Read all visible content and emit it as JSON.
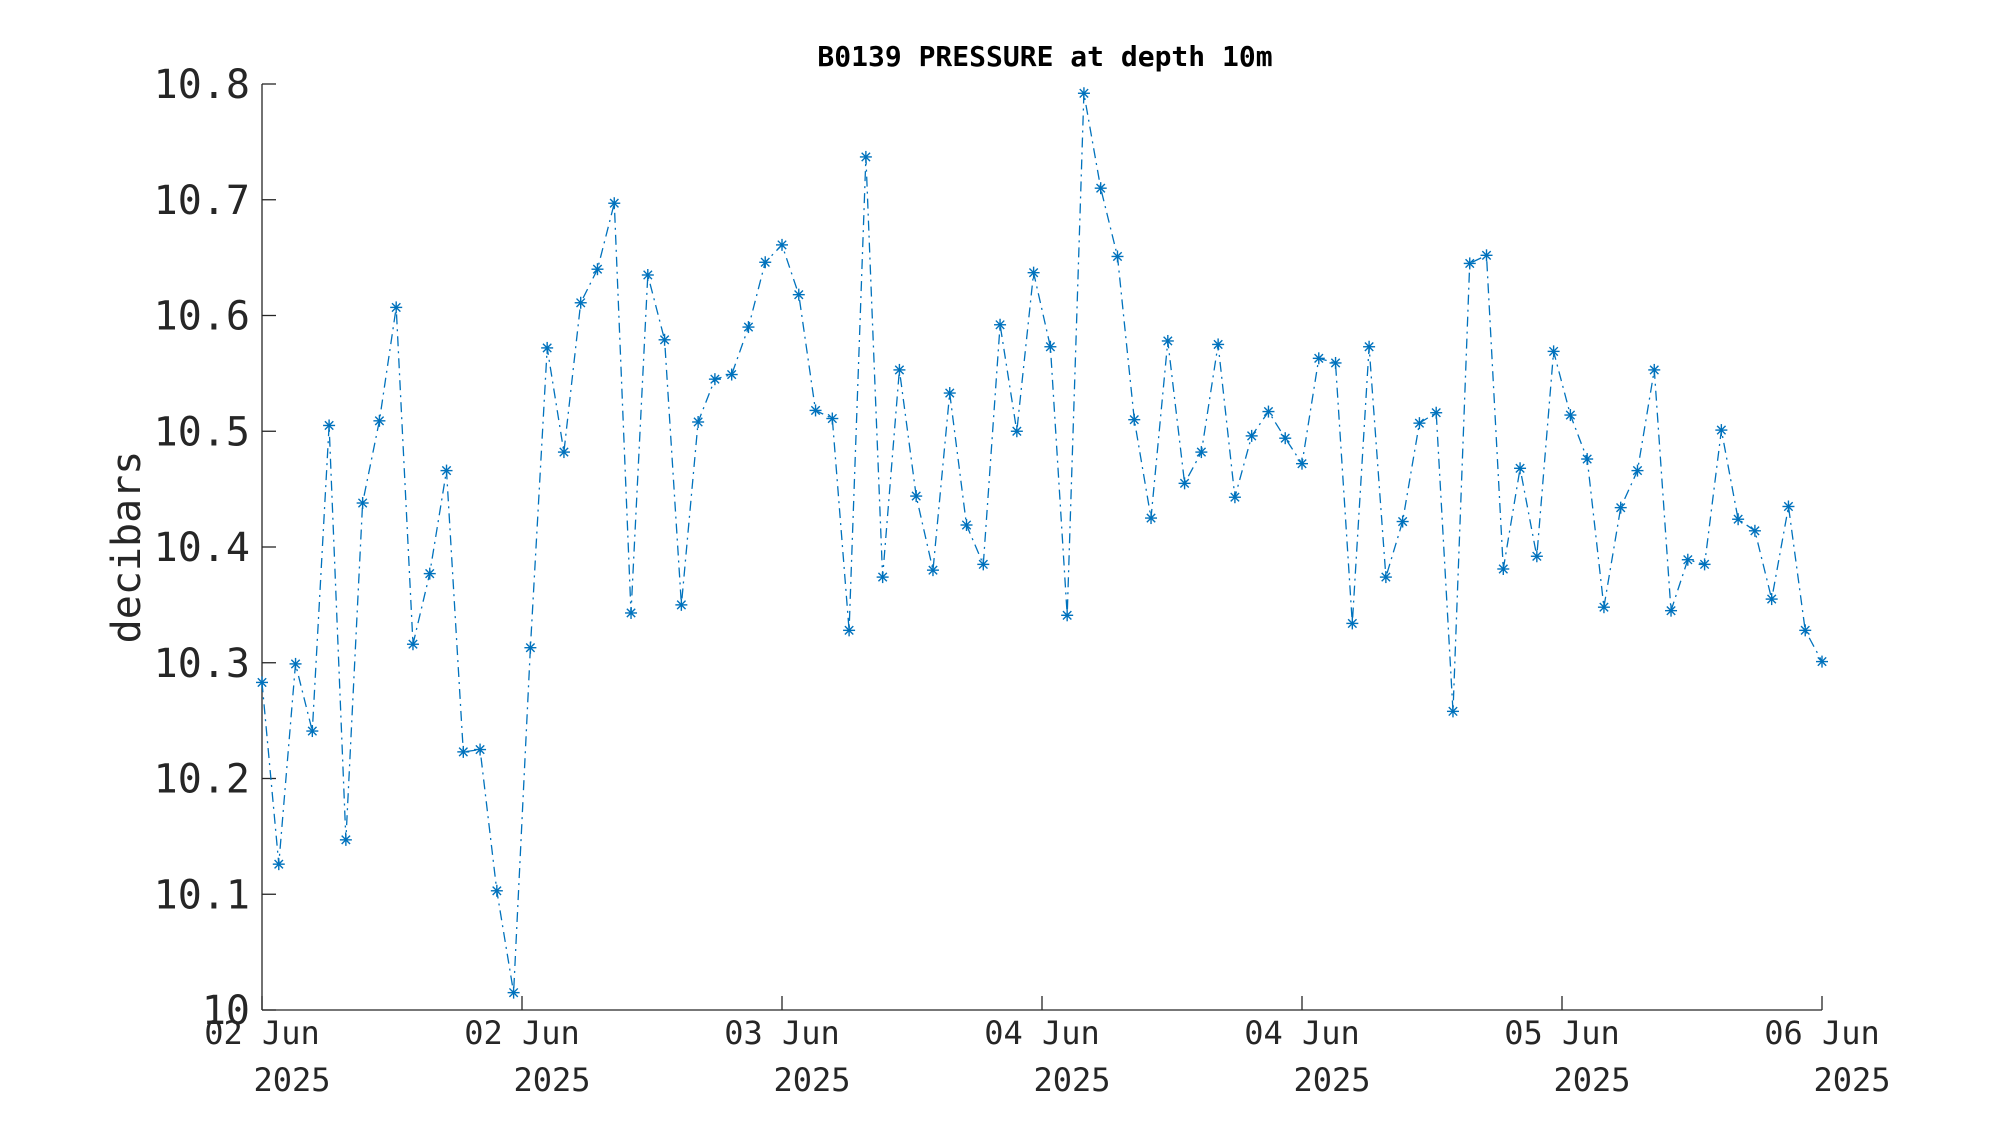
{
  "chart_data": {
    "type": "line",
    "title": "B0139 PRESSURE at depth 10m",
    "ylabel": "decibars",
    "xlabel": "",
    "ylim": [
      10,
      10.8
    ],
    "yticks": [
      "10",
      "10.1",
      "10.2",
      "10.3",
      "10.4",
      "10.5",
      "10.6",
      "10.7",
      "10.8"
    ],
    "xticks": [
      {
        "day": "02 Jun",
        "year": "2025"
      },
      {
        "day": "02 Jun",
        "year": "2025"
      },
      {
        "day": "03 Jun",
        "year": "2025"
      },
      {
        "day": "04 Jun",
        "year": "2025"
      },
      {
        "day": "04 Jun",
        "year": "2025"
      },
      {
        "day": "05 Jun",
        "year": "2025"
      },
      {
        "day": "06 Jun",
        "year": "2025"
      }
    ],
    "grid": false,
    "line_style": "dash-dot",
    "marker": "asterisk",
    "series_color": "#0072BD",
    "series": [
      {
        "values": [
          10.283,
          10.126,
          10.299,
          10.241,
          10.505,
          10.147,
          10.438,
          10.509,
          10.607,
          10.316,
          10.377,
          10.466,
          10.223,
          10.225,
          10.103,
          10.015,
          10.313,
          10.572,
          10.482,
          10.611,
          10.64,
          10.697,
          10.343,
          10.635,
          10.579,
          10.35,
          10.508,
          10.545,
          10.549,
          10.59,
          10.646,
          10.661,
          10.618,
          10.518,
          10.511,
          10.328,
          10.737,
          10.374,
          10.553,
          10.444,
          10.38,
          10.533,
          10.419,
          10.385,
          10.592,
          10.5,
          10.637,
          10.573,
          10.341,
          10.792,
          10.71,
          10.651,
          10.51,
          10.425,
          10.578,
          10.455,
          10.482,
          10.575,
          10.443,
          10.496,
          10.517,
          10.494,
          10.472,
          10.563,
          10.559,
          10.334,
          10.573,
          10.374,
          10.422,
          10.507,
          10.516,
          10.258,
          10.645,
          10.652,
          10.381,
          10.468,
          10.392,
          10.569,
          10.514,
          10.476,
          10.348,
          10.434,
          10.466,
          10.553,
          10.345,
          10.389,
          10.385,
          10.501,
          10.424,
          10.414,
          10.355,
          10.435,
          10.328,
          10.301
        ]
      }
    ]
  }
}
